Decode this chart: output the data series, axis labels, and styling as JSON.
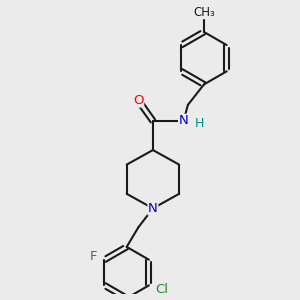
{
  "bg_color": "#ebebeb",
  "bond_color": "#1a1a1a",
  "bond_width": 1.5,
  "atom_colors": {
    "O": "#ff0000",
    "N": "#0000cd",
    "H": "#008b8b",
    "F": "#228b22",
    "Cl": "#228b22",
    "C": "#1a1a1a"
  },
  "fs": 9.5
}
